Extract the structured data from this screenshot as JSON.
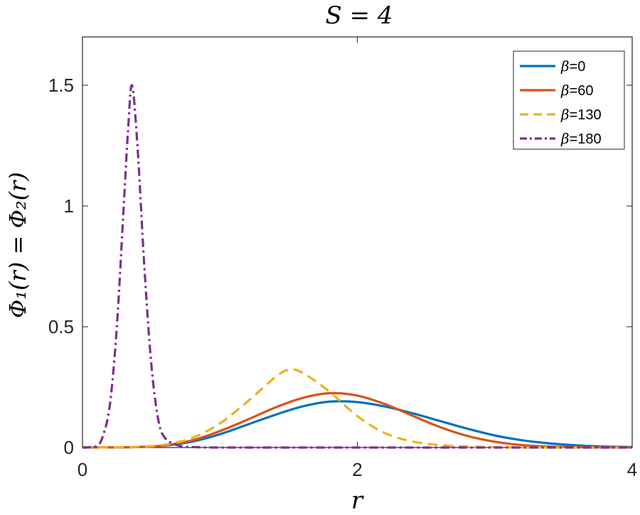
{
  "chart_data": {
    "type": "line",
    "title": "S = 4",
    "xlabel": "r",
    "ylabel": "Φ₁(r) = Φ₂(r)",
    "xlim": [
      0,
      4
    ],
    "ylim": [
      0,
      1.7
    ],
    "xticks": [
      0,
      2,
      4
    ],
    "yticks": [
      0,
      0.5,
      1,
      1.5
    ],
    "grid": false,
    "legend_position": "top-right",
    "series": [
      {
        "name": "β=0",
        "color": "#0072BD",
        "style": "solid",
        "x": [
          0,
          0.2,
          0.4,
          0.6,
          0.8,
          1.0,
          1.2,
          1.4,
          1.6,
          1.8,
          2.0,
          2.2,
          2.4,
          2.6,
          2.8,
          3.0,
          3.2,
          3.4,
          3.6,
          3.8,
          4.0
        ],
        "values": [
          0,
          0.0005,
          0.002,
          0.008,
          0.025,
          0.055,
          0.095,
          0.135,
          0.17,
          0.19,
          0.188,
          0.17,
          0.142,
          0.11,
          0.078,
          0.05,
          0.03,
          0.017,
          0.009,
          0.004,
          0.002
        ]
      },
      {
        "name": "β=60",
        "color": "#D95319",
        "style": "solid",
        "x": [
          0,
          0.2,
          0.4,
          0.6,
          0.8,
          1.0,
          1.2,
          1.4,
          1.6,
          1.8,
          2.0,
          2.2,
          2.4,
          2.6,
          2.8,
          3.0,
          3.2,
          3.4,
          3.6,
          3.8,
          4.0
        ],
        "values": [
          0,
          0.0005,
          0.002,
          0.009,
          0.03,
          0.068,
          0.115,
          0.165,
          0.205,
          0.225,
          0.215,
          0.18,
          0.132,
          0.085,
          0.048,
          0.024,
          0.01,
          0.004,
          0.0015,
          0.0005,
          0.0002
        ]
      },
      {
        "name": "β=130",
        "color": "#EDB120",
        "style": "dashed",
        "x": [
          0,
          0.2,
          0.4,
          0.6,
          0.8,
          1.0,
          1.2,
          1.4,
          1.5,
          1.6,
          1.8,
          2.0,
          2.2,
          2.4,
          2.6,
          2.8,
          3.0,
          3.2,
          3.4,
          4.0
        ],
        "values": [
          0,
          0.0005,
          0.003,
          0.012,
          0.04,
          0.1,
          0.19,
          0.29,
          0.322,
          0.31,
          0.23,
          0.13,
          0.06,
          0.025,
          0.01,
          0.004,
          0.0015,
          0.0005,
          0.0002,
          0
        ]
      },
      {
        "name": "β=180",
        "color": "#7E2F8E",
        "style": "dashdot",
        "x": [
          0,
          0.1,
          0.15,
          0.2,
          0.25,
          0.3,
          0.33,
          0.36,
          0.4,
          0.45,
          0.5,
          0.55,
          0.6,
          0.7,
          0.8,
          1.0,
          1.5,
          2.0,
          3.0,
          4.0
        ],
        "values": [
          0,
          0.005,
          0.05,
          0.18,
          0.5,
          1.0,
          1.3,
          1.5,
          1.25,
          0.75,
          0.35,
          0.12,
          0.04,
          0.008,
          0.002,
          0,
          0,
          0,
          0,
          0
        ]
      }
    ]
  }
}
